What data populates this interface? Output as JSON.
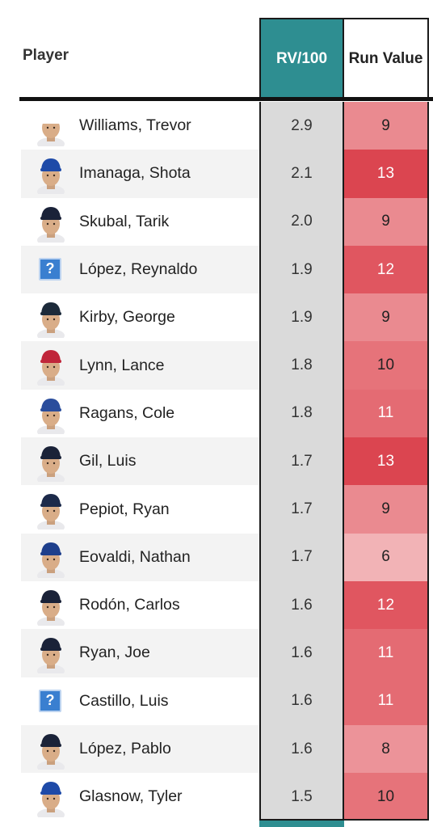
{
  "header": {
    "player_label": "Player",
    "rv100_label": "RV/100",
    "run_value_label": "Run Value"
  },
  "colors": {
    "rv_header": "#2e8e91",
    "rv_cell": "#dadada",
    "run_6": "#f2b3b6",
    "run_8": "#ec9399",
    "run_9": "#ea8a90",
    "run_10": "#e6737a",
    "run_11": "#e46b73",
    "run_12": "#e05660",
    "run_13": "#db4550"
  },
  "rows": [
    {
      "name": "Williams, Trevor",
      "rv100": "2.9",
      "run_value": "9",
      "icon": "player-headshot-icon",
      "cap": "#ffffff",
      "run_color": "#ea8a90"
    },
    {
      "name": "Imanaga, Shota",
      "rv100": "2.1",
      "run_value": "13",
      "icon": "player-headshot-icon",
      "cap": "#1e4aa8",
      "run_color": "#db4550"
    },
    {
      "name": "Skubal, Tarik",
      "rv100": "2.0",
      "run_value": "9",
      "icon": "player-headshot-icon",
      "cap": "#1a2238",
      "run_color": "#ea8a90"
    },
    {
      "name": "López, Reynaldo",
      "rv100": "1.9",
      "run_value": "12",
      "icon": "unknown-player-icon",
      "run_color": "#e05660"
    },
    {
      "name": "Kirby, George",
      "rv100": "1.9",
      "run_value": "9",
      "icon": "player-headshot-icon",
      "cap": "#1c2a3a",
      "run_color": "#ea8a90"
    },
    {
      "name": "Lynn, Lance",
      "rv100": "1.8",
      "run_value": "10",
      "icon": "player-headshot-icon",
      "cap": "#c0263a",
      "run_color": "#e6737a"
    },
    {
      "name": "Ragans, Cole",
      "rv100": "1.8",
      "run_value": "11",
      "icon": "player-headshot-icon",
      "cap": "#2a4d9c",
      "run_color": "#e46b73"
    },
    {
      "name": "Gil, Luis",
      "rv100": "1.7",
      "run_value": "13",
      "icon": "player-headshot-icon",
      "cap": "#1a2238",
      "run_color": "#db4550"
    },
    {
      "name": "Pepiot, Ryan",
      "rv100": "1.7",
      "run_value": "9",
      "icon": "player-headshot-icon",
      "cap": "#1c2a4a",
      "run_color": "#ea8a90"
    },
    {
      "name": "Eovaldi, Nathan",
      "rv100": "1.7",
      "run_value": "6",
      "icon": "player-headshot-icon",
      "cap": "#1e3f8c",
      "run_color": "#f2b3b6"
    },
    {
      "name": "Rodón, Carlos",
      "rv100": "1.6",
      "run_value": "12",
      "icon": "player-headshot-icon",
      "cap": "#1a2238",
      "run_color": "#e05660"
    },
    {
      "name": "Ryan, Joe",
      "rv100": "1.6",
      "run_value": "11",
      "icon": "player-headshot-icon",
      "cap": "#1a2238",
      "run_color": "#e46b73"
    },
    {
      "name": "Castillo, Luis",
      "rv100": "1.6",
      "run_value": "11",
      "icon": "unknown-player-icon",
      "run_color": "#e46b73"
    },
    {
      "name": "López, Pablo",
      "rv100": "1.6",
      "run_value": "8",
      "icon": "player-headshot-icon",
      "cap": "#1a2238",
      "run_color": "#ec9399"
    },
    {
      "name": "Glasnow, Tyler",
      "rv100": "1.5",
      "run_value": "10",
      "icon": "player-headshot-icon",
      "cap": "#1e4aa8",
      "run_color": "#e6737a"
    }
  ]
}
